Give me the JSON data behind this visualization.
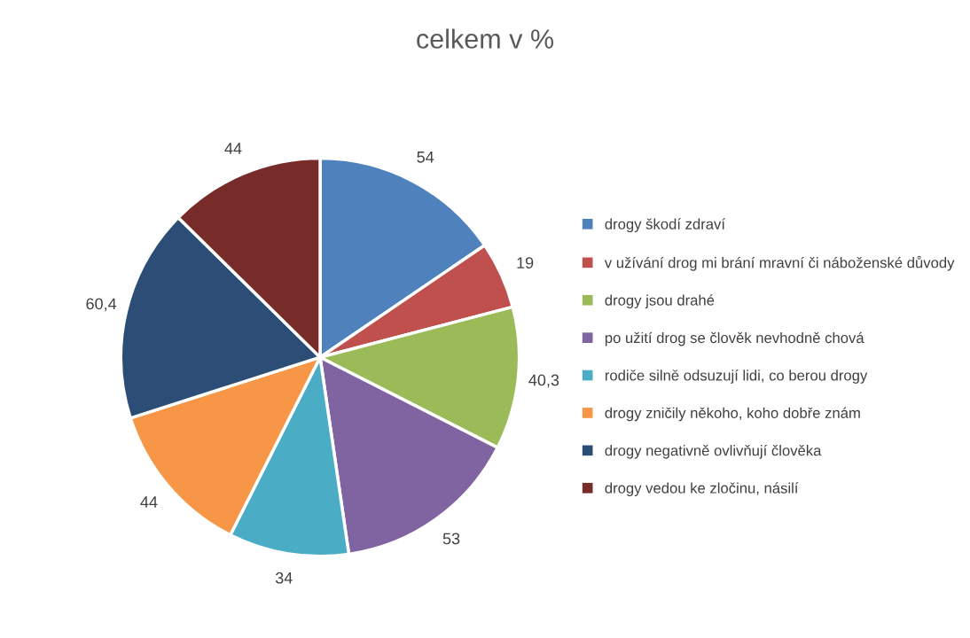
{
  "chart_data": {
    "type": "pie",
    "title": "celkem v %",
    "categories": [
      "drogy škodí zdraví",
      "v užívání drog mi brání mravní či náboženské důvody",
      "drogy jsou drahé",
      "po užití drog se člověk nevhodně chová",
      "rodiče silně odsuzují lidi, co berou drogy",
      "drogy zničily někoho, koho dobře znám",
      "drogy negativně ovlivňují člověka",
      "drogy vedou ke zločinu, násilí"
    ],
    "values": [
      54,
      19,
      40.3,
      53,
      34,
      44,
      60.4,
      44
    ],
    "value_labels": [
      "54",
      "19",
      "40,3",
      "53",
      "34",
      "44",
      "60,4",
      "44"
    ],
    "colors": [
      "#4f81bd",
      "#c0504d",
      "#9bbb59",
      "#8064a2",
      "#4bacc6",
      "#f79646",
      "#2c4d75",
      "#772c2a"
    ],
    "legend": "right"
  }
}
